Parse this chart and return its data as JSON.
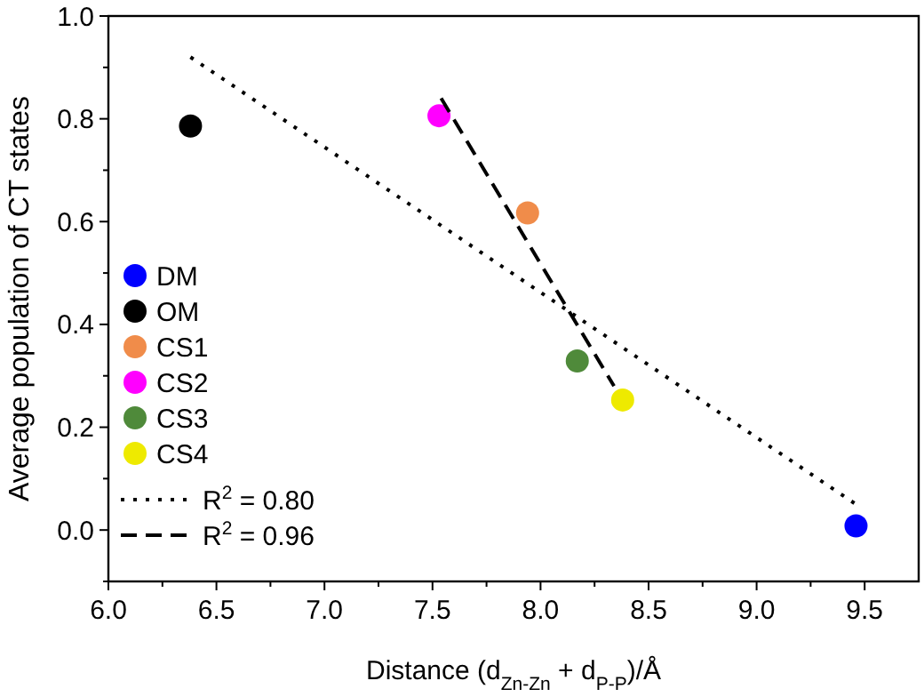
{
  "chart_data": {
    "type": "scatter",
    "xlabel": "Distance (d$_{Zn-Zn}$ + d$_{P-P}$)/Å",
    "ylabel": "Average population of CT states",
    "xlim": [
      6.0,
      9.75
    ],
    "ylim": [
      -0.1,
      1.0
    ],
    "xticks": [
      {
        "value": 6.0,
        "label": "6.0"
      },
      {
        "value": 6.25,
        "label": null
      },
      {
        "value": 6.5,
        "label": "6.5"
      },
      {
        "value": 6.75,
        "label": null
      },
      {
        "value": 7.0,
        "label": "7.0"
      },
      {
        "value": 7.25,
        "label": null
      },
      {
        "value": 7.5,
        "label": "7.5"
      },
      {
        "value": 7.75,
        "label": null
      },
      {
        "value": 8.0,
        "label": "8.0"
      },
      {
        "value": 8.25,
        "label": null
      },
      {
        "value": 8.5,
        "label": "8.5"
      },
      {
        "value": 8.75,
        "label": null
      },
      {
        "value": 9.0,
        "label": "9.0"
      },
      {
        "value": 9.25,
        "label": null
      },
      {
        "value": 9.5,
        "label": "9.5"
      }
    ],
    "yticks": [
      {
        "value": -0.1,
        "label": null
      },
      {
        "value": 0.0,
        "label": "0.0"
      },
      {
        "value": 0.1,
        "label": null
      },
      {
        "value": 0.2,
        "label": "0.2"
      },
      {
        "value": 0.3,
        "label": null
      },
      {
        "value": 0.4,
        "label": "0.4"
      },
      {
        "value": 0.5,
        "label": null
      },
      {
        "value": 0.6,
        "label": "0.6"
      },
      {
        "value": 0.7,
        "label": null
      },
      {
        "value": 0.8,
        "label": "0.8"
      },
      {
        "value": 0.9,
        "label": null
      },
      {
        "value": 1.0,
        "label": "1.0"
      }
    ],
    "marker": "circle",
    "legend": "left",
    "grid": false,
    "series": [
      {
        "name": "DM",
        "color": "#0000ff",
        "x": [
          9.46
        ],
        "values": [
          0.008
        ]
      },
      {
        "name": "OM",
        "color": "#000000",
        "x": [
          6.38
        ],
        "values": [
          0.786
        ]
      },
      {
        "name": "CS1",
        "color": "#f08c4a",
        "x": [
          7.94
        ],
        "values": [
          0.617
        ]
      },
      {
        "name": "CS2",
        "color": "#ff00ff",
        "x": [
          7.53
        ],
        "values": [
          0.806
        ]
      },
      {
        "name": "CS3",
        "color": "#4f8a3a",
        "x": [
          8.17
        ],
        "values": [
          0.329
        ]
      },
      {
        "name": "CS4",
        "color": "#eeea00",
        "x": [
          8.38
        ],
        "values": [
          0.253
        ]
      },
      {
        "name": "R$^{2}$ = 0.80",
        "type": "line",
        "marker": "none",
        "line_style": "dotted",
        "color": "#000000",
        "x": [
          6.38,
          9.46
        ],
        "values": [
          0.92,
          0.05
        ]
      },
      {
        "name": "R$^{2}$ = 0.96",
        "type": "line",
        "marker": "none",
        "line_style": "dashed",
        "color": "#000000",
        "x": [
          7.54,
          8.34
        ],
        "values": [
          0.84,
          0.28
        ]
      }
    ]
  }
}
